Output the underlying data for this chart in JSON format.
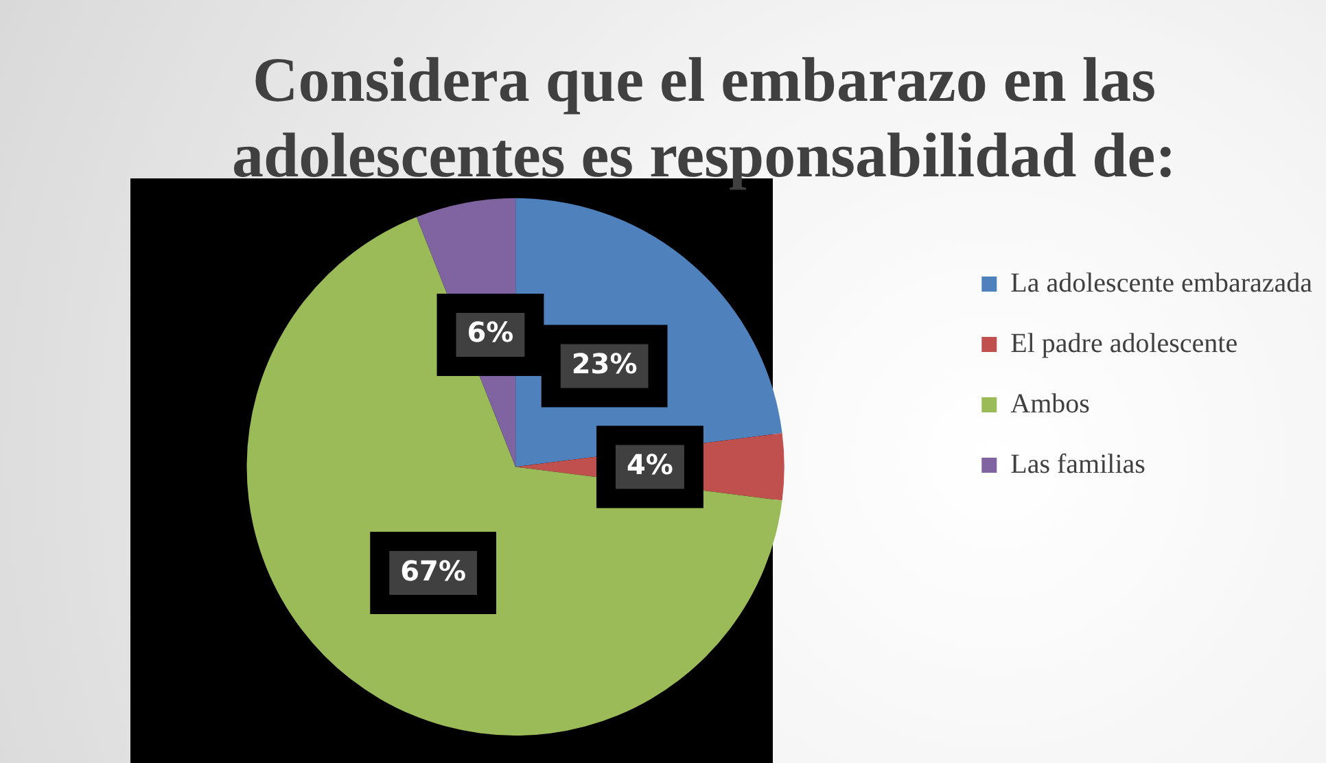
{
  "chart_data": {
    "type": "pie",
    "title": "Considera que el embarazo en las adolescentes es responsabilidad de:",
    "categories": [
      "La adolescente embarazada",
      "El padre adolescente",
      "Ambos",
      "Las familias"
    ],
    "values": [
      23,
      4,
      67,
      6
    ],
    "colors": [
      "#4f81bd",
      "#c0504d",
      "#9bbb59",
      "#8064a2"
    ],
    "value_labels": [
      "23%",
      "4%",
      "67%",
      "6%"
    ],
    "legend": "right"
  }
}
